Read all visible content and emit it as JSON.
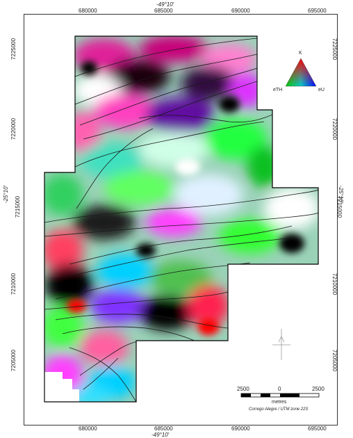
{
  "axes": {
    "x_ticks": [
      "680000",
      "685000",
      "690000",
      "695000"
    ],
    "y_ticks": [
      "7225000",
      "7220000",
      "7215000",
      "7210000",
      "7205000"
    ],
    "lon_label": "-49°10'",
    "lat_label": "-25°10'"
  },
  "legend": {
    "apex_top": "K",
    "apex_left": "eTH",
    "apex_right": "eU",
    "colors": {
      "top": "#ff0000",
      "left": "#00cc00",
      "right": "#0000ff"
    }
  },
  "scale_bar": {
    "labels": [
      "2500",
      "0",
      "2500"
    ],
    "unit": "metres",
    "caption": "Corrego Alegre / UTM zone 22S"
  },
  "colors": {
    "boundary": "#000000",
    "contour": "#1a1a1a",
    "frame": "#333333"
  }
}
